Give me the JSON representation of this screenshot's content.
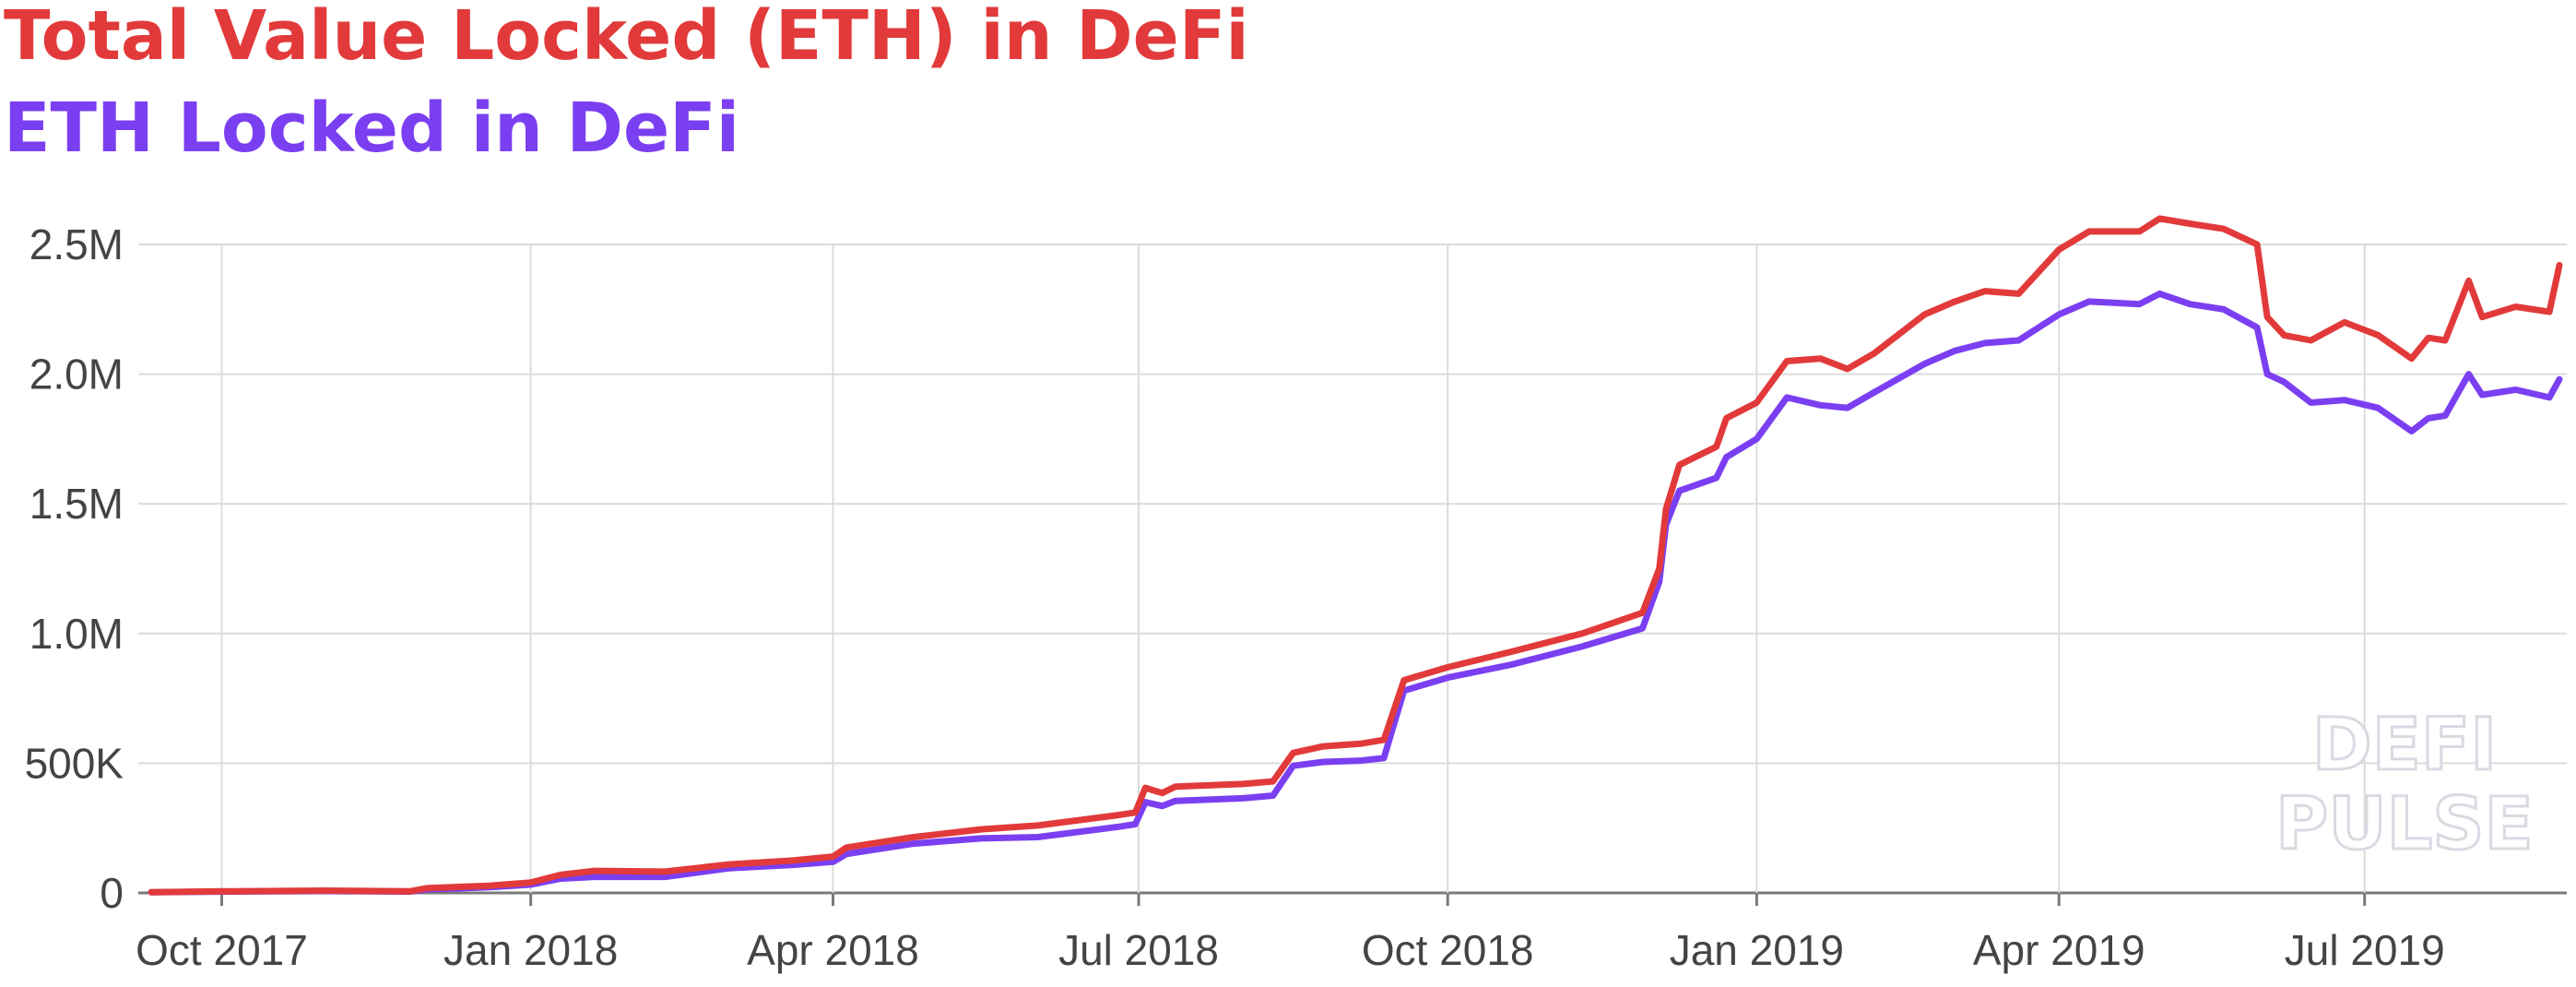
{
  "chart_data": {
    "type": "line",
    "title": "Total Value Locked (ETH) in DeFi",
    "subtitle": "ETH Locked in DeFi",
    "xlabel": "",
    "ylabel": "",
    "x_ticks": [
      "Oct 2017",
      "Jan 2018",
      "Apr 2018",
      "Jul 2018",
      "Oct 2018",
      "Jan 2019",
      "Apr 2019",
      "Jul 2019"
    ],
    "y_ticks": [
      "0",
      "500K",
      "1.0M",
      "1.5M",
      "2.0M",
      "2.5M"
    ],
    "ylim": [
      0,
      2500000
    ],
    "xlim": [
      "2017-09-10",
      "2019-08-28"
    ],
    "grid": true,
    "series": [
      {
        "name": "Total Value Locked (ETH) in DeFi",
        "color": "#e23a3a",
        "points": [
          [
            "2017-09-10",
            3000
          ],
          [
            "2017-10-01",
            6000
          ],
          [
            "2017-11-01",
            9000
          ],
          [
            "2017-11-26",
            6000
          ],
          [
            "2017-12-01",
            18000
          ],
          [
            "2017-12-20",
            28000
          ],
          [
            "2018-01-01",
            40000
          ],
          [
            "2018-01-10",
            70000
          ],
          [
            "2018-01-20",
            85000
          ],
          [
            "2018-02-10",
            82000
          ],
          [
            "2018-03-01",
            110000
          ],
          [
            "2018-03-20",
            125000
          ],
          [
            "2018-04-01",
            140000
          ],
          [
            "2018-04-05",
            175000
          ],
          [
            "2018-04-25",
            215000
          ],
          [
            "2018-05-15",
            245000
          ],
          [
            "2018-06-01",
            260000
          ],
          [
            "2018-06-25",
            300000
          ],
          [
            "2018-06-30",
            310000
          ],
          [
            "2018-07-03",
            405000
          ],
          [
            "2018-07-08",
            385000
          ],
          [
            "2018-07-12",
            410000
          ],
          [
            "2018-08-01",
            420000
          ],
          [
            "2018-08-10",
            430000
          ],
          [
            "2018-08-16",
            540000
          ],
          [
            "2018-08-25",
            565000
          ],
          [
            "2018-09-05",
            575000
          ],
          [
            "2018-09-12",
            590000
          ],
          [
            "2018-09-18",
            820000
          ],
          [
            "2018-10-01",
            870000
          ],
          [
            "2018-10-20",
            930000
          ],
          [
            "2018-11-10",
            1000000
          ],
          [
            "2018-11-28",
            1080000
          ],
          [
            "2018-12-03",
            1250000
          ],
          [
            "2018-12-05",
            1480000
          ],
          [
            "2018-12-09",
            1650000
          ],
          [
            "2018-12-20",
            1720000
          ],
          [
            "2018-12-23",
            1830000
          ],
          [
            "2019-01-01",
            1890000
          ],
          [
            "2019-01-10",
            2050000
          ],
          [
            "2019-01-20",
            2060000
          ],
          [
            "2019-01-28",
            2020000
          ],
          [
            "2019-02-05",
            2080000
          ],
          [
            "2019-02-20",
            2230000
          ],
          [
            "2019-03-01",
            2280000
          ],
          [
            "2019-03-10",
            2320000
          ],
          [
            "2019-03-20",
            2310000
          ],
          [
            "2019-04-01",
            2480000
          ],
          [
            "2019-04-10",
            2550000
          ],
          [
            "2019-04-25",
            2550000
          ],
          [
            "2019-05-01",
            2600000
          ],
          [
            "2019-05-10",
            2580000
          ],
          [
            "2019-05-20",
            2560000
          ],
          [
            "2019-05-30",
            2500000
          ],
          [
            "2019-06-02",
            2220000
          ],
          [
            "2019-06-07",
            2150000
          ],
          [
            "2019-06-15",
            2130000
          ],
          [
            "2019-06-25",
            2200000
          ],
          [
            "2019-07-05",
            2150000
          ],
          [
            "2019-07-15",
            2060000
          ],
          [
            "2019-07-20",
            2140000
          ],
          [
            "2019-07-25",
            2130000
          ],
          [
            "2019-08-01",
            2360000
          ],
          [
            "2019-08-05",
            2220000
          ],
          [
            "2019-08-15",
            2260000
          ],
          [
            "2019-08-25",
            2240000
          ],
          [
            "2019-08-28",
            2420000
          ]
        ]
      },
      {
        "name": "ETH Locked in DeFi",
        "color": "#7b3ff2",
        "points": [
          [
            "2017-09-10",
            3000
          ],
          [
            "2017-10-01",
            5000
          ],
          [
            "2017-11-01",
            7000
          ],
          [
            "2017-11-26",
            5000
          ],
          [
            "2017-12-01",
            14000
          ],
          [
            "2017-12-20",
            22000
          ],
          [
            "2018-01-01",
            32000
          ],
          [
            "2018-01-10",
            55000
          ],
          [
            "2018-01-20",
            62000
          ],
          [
            "2018-02-10",
            62000
          ],
          [
            "2018-03-01",
            95000
          ],
          [
            "2018-03-20",
            108000
          ],
          [
            "2018-04-01",
            120000
          ],
          [
            "2018-04-05",
            150000
          ],
          [
            "2018-04-25",
            190000
          ],
          [
            "2018-05-15",
            210000
          ],
          [
            "2018-06-01",
            215000
          ],
          [
            "2018-06-25",
            255000
          ],
          [
            "2018-06-30",
            265000
          ],
          [
            "2018-07-03",
            350000
          ],
          [
            "2018-07-08",
            335000
          ],
          [
            "2018-07-12",
            355000
          ],
          [
            "2018-08-01",
            365000
          ],
          [
            "2018-08-10",
            375000
          ],
          [
            "2018-08-16",
            490000
          ],
          [
            "2018-08-25",
            505000
          ],
          [
            "2018-09-05",
            510000
          ],
          [
            "2018-09-12",
            520000
          ],
          [
            "2018-09-18",
            780000
          ],
          [
            "2018-10-01",
            830000
          ],
          [
            "2018-10-20",
            880000
          ],
          [
            "2018-11-10",
            950000
          ],
          [
            "2018-11-28",
            1020000
          ],
          [
            "2018-12-03",
            1200000
          ],
          [
            "2018-12-05",
            1420000
          ],
          [
            "2018-12-09",
            1550000
          ],
          [
            "2018-12-20",
            1600000
          ],
          [
            "2018-12-23",
            1680000
          ],
          [
            "2019-01-01",
            1750000
          ],
          [
            "2019-01-10",
            1910000
          ],
          [
            "2019-01-20",
            1880000
          ],
          [
            "2019-01-28",
            1870000
          ],
          [
            "2019-02-05",
            1930000
          ],
          [
            "2019-02-20",
            2040000
          ],
          [
            "2019-03-01",
            2090000
          ],
          [
            "2019-03-10",
            2120000
          ],
          [
            "2019-03-20",
            2130000
          ],
          [
            "2019-04-01",
            2230000
          ],
          [
            "2019-04-10",
            2280000
          ],
          [
            "2019-04-25",
            2270000
          ],
          [
            "2019-05-01",
            2310000
          ],
          [
            "2019-05-10",
            2270000
          ],
          [
            "2019-05-20",
            2250000
          ],
          [
            "2019-05-30",
            2180000
          ],
          [
            "2019-06-02",
            2000000
          ],
          [
            "2019-06-07",
            1970000
          ],
          [
            "2019-06-15",
            1890000
          ],
          [
            "2019-06-25",
            1900000
          ],
          [
            "2019-07-05",
            1870000
          ],
          [
            "2019-07-15",
            1780000
          ],
          [
            "2019-07-20",
            1830000
          ],
          [
            "2019-07-25",
            1840000
          ],
          [
            "2019-08-01",
            2000000
          ],
          [
            "2019-08-05",
            1920000
          ],
          [
            "2019-08-15",
            1940000
          ],
          [
            "2019-08-25",
            1910000
          ],
          [
            "2019-08-28",
            1980000
          ]
        ]
      }
    ],
    "watermark": [
      "DEFI",
      "PULSE"
    ]
  }
}
